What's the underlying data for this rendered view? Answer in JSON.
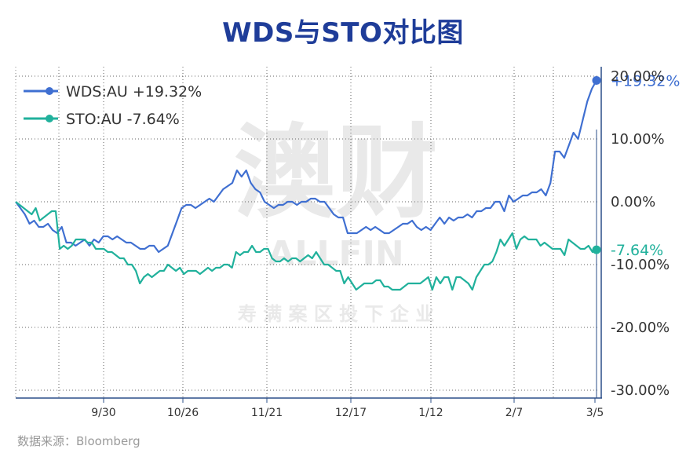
{
  "title": "WDS与STO对比图",
  "source": "数据来源：Bloomberg",
  "colors": {
    "wds": "#3f6fd1",
    "sto": "#21b19c",
    "axis": "#2b4f88",
    "title": "#1f3d99"
  },
  "chart_data": {
    "type": "line",
    "title": "WDS与STO对比图",
    "xlabel": "",
    "ylabel": "",
    "ylim": [
      -30,
      20
    ],
    "yticks": [
      "20.00%",
      "10.00%",
      "0.00%",
      "-10.00%",
      "-20.00%",
      "-30.00%"
    ],
    "xticks": [
      "9/30",
      "10/26",
      "11/21",
      "12/17",
      "1/12",
      "2/7",
      "3/5"
    ],
    "legend": "top-left",
    "grid": true,
    "series": [
      {
        "name": "WDS:AU +19.32%",
        "end_label": "+19.32%",
        "color": "#3f6fd1",
        "values": [
          0,
          -1,
          -2,
          -3.5,
          -3,
          -4,
          -4,
          -3.5,
          -4.5,
          -5,
          -4,
          -6.5,
          -6.5,
          -7,
          -6.5,
          -6,
          -7,
          -6,
          -6.5,
          -5.5,
          -5.5,
          -6,
          -5.5,
          -6,
          -6.5,
          -6.5,
          -7,
          -7.5,
          -7.5,
          -7,
          -7,
          -8,
          -7.5,
          -7,
          -5,
          -3,
          -1,
          -0.5,
          -0.5,
          -1,
          -0.5,
          0,
          0.5,
          0,
          1,
          2,
          2.5,
          3,
          5,
          4,
          5,
          3,
          2,
          1.5,
          0,
          -0.5,
          -1,
          -0.5,
          -0.5,
          0,
          0,
          -0.5,
          0,
          0,
          0.5,
          0.5,
          0,
          0,
          -1,
          -2,
          -2.5,
          -2.5,
          -5,
          -5,
          -5,
          -4.5,
          -4,
          -4.5,
          -4,
          -4.5,
          -5,
          -5,
          -4.5,
          -4,
          -3.5,
          -3.5,
          -3,
          -4,
          -4.5,
          -4,
          -4.5,
          -3.5,
          -2.5,
          -3.5,
          -2.5,
          -3,
          -2.5,
          -2.5,
          -2,
          -2.5,
          -1.5,
          -1.5,
          -1,
          -1,
          0,
          0,
          -1.5,
          1,
          0,
          0.5,
          1,
          1,
          1.5,
          1.5,
          2,
          1,
          3,
          8,
          8,
          7,
          9,
          11,
          10,
          13,
          16,
          18,
          19.32
        ]
      },
      {
        "name": "STO:AU -7.64%",
        "end_label": "-7.64%",
        "color": "#21b19c",
        "values": [
          0,
          -0.5,
          -1,
          -1.5,
          -2,
          -1,
          -3,
          -2.5,
          -2,
          -1.5,
          -1.5,
          -7.5,
          -7,
          -7.5,
          -7,
          -6,
          -6,
          -6,
          -6.5,
          -6.5,
          -7.5,
          -7.5,
          -7.5,
          -8,
          -8,
          -8.5,
          -9,
          -9,
          -10,
          -10,
          -11,
          -13,
          -12,
          -11.5,
          -12,
          -11.5,
          -11,
          -11,
          -10,
          -10.5,
          -11,
          -10.5,
          -11.5,
          -11,
          -11,
          -11,
          -11.5,
          -11,
          -10.5,
          -11,
          -10.5,
          -10.5,
          -10,
          -10,
          -10.5,
          -8,
          -8.5,
          -8,
          -8,
          -7,
          -8,
          -8,
          -7.5,
          -7.5,
          -9,
          -9.5,
          -9.5,
          -9,
          -9.5,
          -9,
          -9,
          -9.5,
          -9,
          -8.5,
          -9,
          -8,
          -9,
          -10,
          -10,
          -10.5,
          -11,
          -11,
          -13,
          -12,
          -13,
          -14,
          -13.5,
          -13,
          -13,
          -13,
          -12.5,
          -12.5,
          -13.5,
          -13.5,
          -14,
          -14,
          -14,
          -13.5,
          -13,
          -13,
          -13,
          -13,
          -12.5,
          -12,
          -14,
          -12,
          -13,
          -12,
          -12,
          -14,
          -12,
          -12,
          -12.5,
          -13,
          -14,
          -12,
          -11,
          -10,
          -10,
          -9.5,
          -8,
          -6,
          -7,
          -6,
          -5,
          -7.5,
          -6,
          -5.5,
          -6,
          -6,
          -6,
          -7,
          -6.5,
          -7,
          -7.5,
          -7.5,
          -7.5,
          -8.5,
          -6,
          -6.5,
          -7,
          -7.5,
          -7.5,
          -7,
          -8,
          -7.64
        ]
      }
    ]
  }
}
